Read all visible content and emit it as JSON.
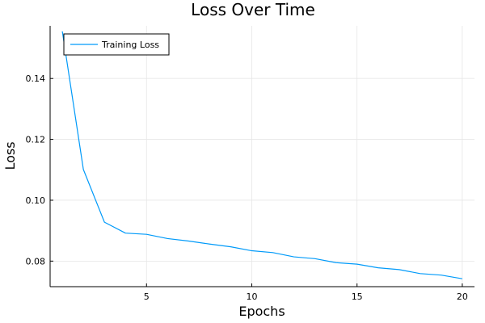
{
  "chart_data": {
    "type": "line",
    "title": "Loss Over Time",
    "xlabel": "Epochs",
    "ylabel": "Loss",
    "xlim": [
      0.42,
      20.58
    ],
    "ylim": [
      0.0716,
      0.1573
    ],
    "xticks": [
      5,
      10,
      15,
      20
    ],
    "yticks": [
      0.08,
      0.1,
      0.12,
      0.14
    ],
    "xtick_labels": [
      "5",
      "10",
      "15",
      "20"
    ],
    "ytick_labels": [
      "0.08",
      "0.10",
      "0.12",
      "0.14"
    ],
    "grid": true,
    "legend_position": "top-left",
    "color": "#009AF9",
    "series": [
      {
        "name": "Training Loss",
        "x": [
          1,
          2,
          3,
          4,
          5,
          6,
          7,
          8,
          9,
          10,
          11,
          12,
          13,
          14,
          15,
          16,
          17,
          18,
          19,
          20
        ],
        "y": [
          0.1555,
          0.1101,
          0.0928,
          0.0892,
          0.0888,
          0.0874,
          0.0866,
          0.0856,
          0.0847,
          0.0834,
          0.0828,
          0.0814,
          0.0808,
          0.0795,
          0.079,
          0.0778,
          0.0772,
          0.0759,
          0.0754,
          0.0742
        ]
      }
    ]
  }
}
